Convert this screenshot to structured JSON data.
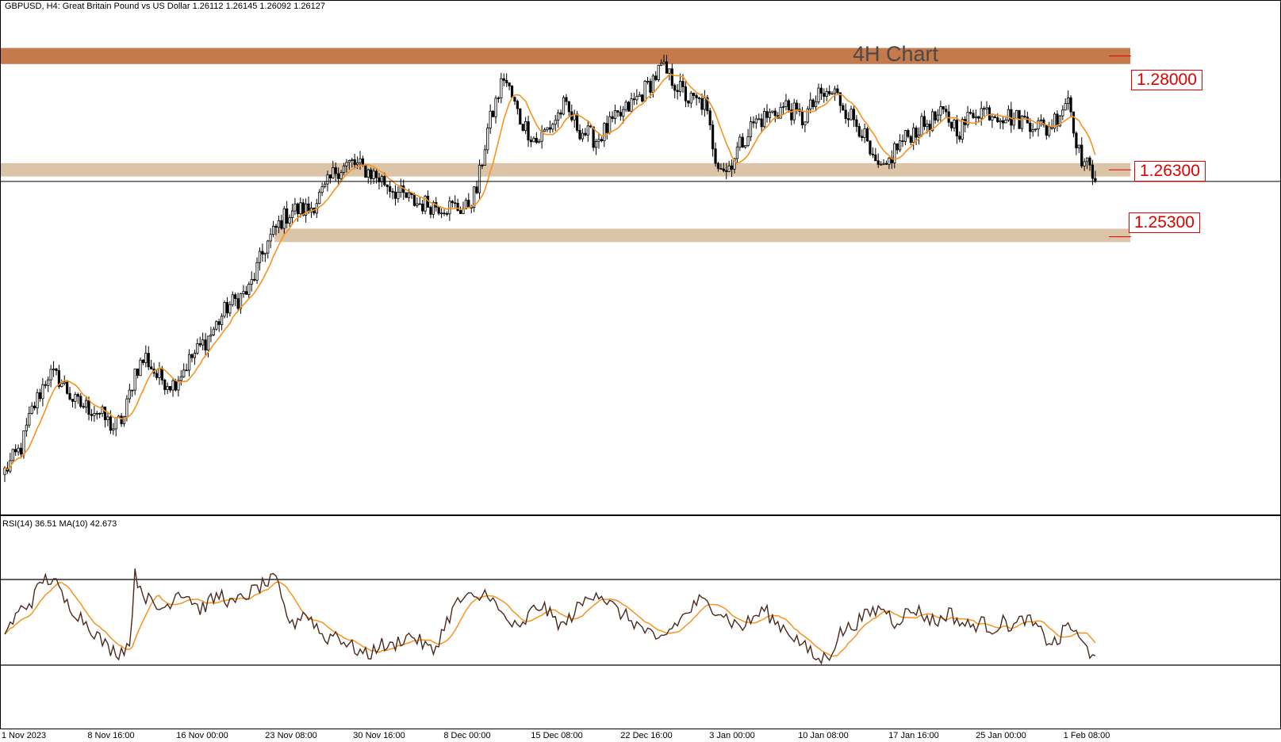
{
  "header": {
    "symbol_line": "GBPUSD, H4:  Great Britain Pound vs US Dollar  1.26112 1.26145 1.26092 1.26127"
  },
  "annotation": {
    "title": "4H Chart"
  },
  "levels": [
    {
      "label": "1.28000",
      "value": 1.28,
      "zone": [
        1.2788,
        1.2812
      ],
      "color": "#c47a4a"
    },
    {
      "label": "1.26300",
      "value": 1.263,
      "zone": [
        1.262,
        1.264
      ],
      "color": "#dcc4a8"
    },
    {
      "label": "1.25300",
      "value": 1.253,
      "zone": [
        1.2522,
        1.2542
      ],
      "color": "#dcc4a8"
    }
  ],
  "rsi_panel": {
    "label": "RSI(14) 36.51 MA(10) 42.673",
    "upper_level": 70,
    "lower_level": 30
  },
  "x_labels": [
    "1 Nov 2023",
    "8 Nov 16:00",
    "16 Nov 00:00",
    "23 Nov 08:00",
    "30 Nov 16:00",
    "8 Dec 00:00",
    "15 Dec 08:00",
    "22 Dec 16:00",
    "3 Jan 00:00",
    "10 Jan 08:00",
    "17 Jan 16:00",
    "25 Jan 00:00",
    "1 Feb 08:00"
  ],
  "chart_data": {
    "type": "candlestick",
    "symbol": "GBPUSD",
    "timeframe": "H4",
    "ylim": [
      1.214,
      1.286
    ],
    "rsi_ylim": [
      0,
      100
    ],
    "last_price": 1.26127,
    "colors": {
      "candle": "#000000",
      "ma": "#f7931e",
      "rsi": "#4b2a1e",
      "rsi_ma": "#f7931e"
    },
    "anchors": [
      [
        0,
        1.218
      ],
      [
        6,
        1.2215
      ],
      [
        10,
        1.227
      ],
      [
        16,
        1.2325
      ],
      [
        20,
        1.2318
      ],
      [
        26,
        1.2282
      ],
      [
        34,
        1.227
      ],
      [
        40,
        1.2245
      ],
      [
        44,
        1.226
      ],
      [
        48,
        1.233
      ],
      [
        52,
        1.235
      ],
      [
        56,
        1.2322
      ],
      [
        62,
        1.231
      ],
      [
        68,
        1.2345
      ],
      [
        76,
        1.2385
      ],
      [
        82,
        1.2425
      ],
      [
        90,
        1.245
      ],
      [
        96,
        1.2515
      ],
      [
        102,
        1.2555
      ],
      [
        106,
        1.257
      ],
      [
        112,
        1.257
      ],
      [
        118,
        1.26
      ],
      [
        122,
        1.263
      ],
      [
        128,
        1.264
      ],
      [
        134,
        1.2628
      ],
      [
        140,
        1.2612
      ],
      [
        146,
        1.2592
      ],
      [
        152,
        1.258
      ],
      [
        158,
        1.2578
      ],
      [
        164,
        1.2575
      ],
      [
        170,
        1.2572
      ],
      [
        174,
        1.26
      ],
      [
        178,
        1.269
      ],
      [
        184,
        1.277
      ],
      [
        190,
        1.2705
      ],
      [
        196,
        1.2672
      ],
      [
        202,
        1.27
      ],
      [
        206,
        1.2725
      ],
      [
        212,
        1.269
      ],
      [
        218,
        1.2675
      ],
      [
        224,
        1.27
      ],
      [
        228,
        1.2715
      ],
      [
        234,
        1.274
      ],
      [
        238,
        1.276
      ],
      [
        242,
        1.2782
      ],
      [
        246,
        1.2765
      ],
      [
        252,
        1.2735
      ],
      [
        258,
        1.2728
      ],
      [
        262,
        1.265
      ],
      [
        266,
        1.2628
      ],
      [
        270,
        1.266
      ],
      [
        276,
        1.27
      ],
      [
        282,
        1.2712
      ],
      [
        288,
        1.2725
      ],
      [
        294,
        1.2705
      ],
      [
        300,
        1.2738
      ],
      [
        306,
        1.2745
      ],
      [
        310,
        1.272
      ],
      [
        316,
        1.269
      ],
      [
        320,
        1.2638
      ],
      [
        324,
        1.2625
      ],
      [
        328,
        1.266
      ],
      [
        334,
        1.2685
      ],
      [
        340,
        1.27
      ],
      [
        346,
        1.2712
      ],
      [
        352,
        1.269
      ],
      [
        358,
        1.272
      ],
      [
        362,
        1.2718
      ],
      [
        368,
        1.2712
      ],
      [
        374,
        1.2705
      ],
      [
        380,
        1.27
      ],
      [
        384,
        1.269
      ],
      [
        388,
        1.271
      ],
      [
        392,
        1.274
      ],
      [
        396,
        1.2655
      ],
      [
        400,
        1.2628
      ],
      [
        402,
        1.2625
      ]
    ],
    "rsi_anchors": [
      [
        0,
        45
      ],
      [
        6,
        56
      ],
      [
        10,
        60
      ],
      [
        14,
        70
      ],
      [
        18,
        70
      ],
      [
        22,
        60
      ],
      [
        26,
        55
      ],
      [
        30,
        50
      ],
      [
        34,
        44
      ],
      [
        38,
        38
      ],
      [
        42,
        36
      ],
      [
        46,
        40
      ],
      [
        48,
        72
      ],
      [
        52,
        62
      ],
      [
        56,
        56
      ],
      [
        60,
        58
      ],
      [
        64,
        65
      ],
      [
        68,
        62
      ],
      [
        72,
        56
      ],
      [
        76,
        60
      ],
      [
        80,
        63
      ],
      [
        84,
        58
      ],
      [
        88,
        62
      ],
      [
        92,
        65
      ],
      [
        96,
        68
      ],
      [
        100,
        70
      ],
      [
        102,
        60
      ],
      [
        106,
        48
      ],
      [
        110,
        55
      ],
      [
        114,
        50
      ],
      [
        118,
        42
      ],
      [
        122,
        45
      ],
      [
        126,
        40
      ],
      [
        130,
        37
      ],
      [
        134,
        34
      ],
      [
        138,
        40
      ],
      [
        142,
        38
      ],
      [
        146,
        42
      ],
      [
        150,
        44
      ],
      [
        154,
        40
      ],
      [
        158,
        36
      ],
      [
        162,
        48
      ],
      [
        166,
        58
      ],
      [
        170,
        62
      ],
      [
        174,
        60
      ],
      [
        178,
        65
      ],
      [
        182,
        55
      ],
      [
        186,
        50
      ],
      [
        190,
        46
      ],
      [
        194,
        55
      ],
      [
        198,
        58
      ],
      [
        202,
        52
      ],
      [
        206,
        48
      ],
      [
        210,
        55
      ],
      [
        214,
        60
      ],
      [
        218,
        65
      ],
      [
        222,
        60
      ],
      [
        226,
        55
      ],
      [
        230,
        52
      ],
      [
        234,
        48
      ],
      [
        238,
        44
      ],
      [
        240,
        40
      ],
      [
        244,
        45
      ],
      [
        248,
        50
      ],
      [
        252,
        55
      ],
      [
        256,
        60
      ],
      [
        260,
        58
      ],
      [
        264,
        55
      ],
      [
        268,
        50
      ],
      [
        272,
        48
      ],
      [
        276,
        52
      ],
      [
        280,
        56
      ],
      [
        284,
        50
      ],
      [
        288,
        47
      ],
      [
        292,
        42
      ],
      [
        296,
        37
      ],
      [
        300,
        32
      ],
      [
        304,
        35
      ],
      [
        308,
        45
      ],
      [
        312,
        48
      ],
      [
        316,
        52
      ],
      [
        320,
        55
      ],
      [
        324,
        57
      ],
      [
        328,
        50
      ],
      [
        332,
        54
      ],
      [
        336,
        56
      ],
      [
        340,
        52
      ],
      [
        344,
        50
      ],
      [
        348,
        55
      ],
      [
        352,
        50
      ],
      [
        356,
        48
      ],
      [
        360,
        50
      ],
      [
        364,
        47
      ],
      [
        368,
        50
      ],
      [
        372,
        48
      ],
      [
        376,
        52
      ],
      [
        380,
        48
      ],
      [
        384,
        42
      ],
      [
        388,
        40
      ],
      [
        392,
        50
      ],
      [
        396,
        42
      ],
      [
        400,
        36
      ],
      [
        402,
        37
      ]
    ]
  }
}
